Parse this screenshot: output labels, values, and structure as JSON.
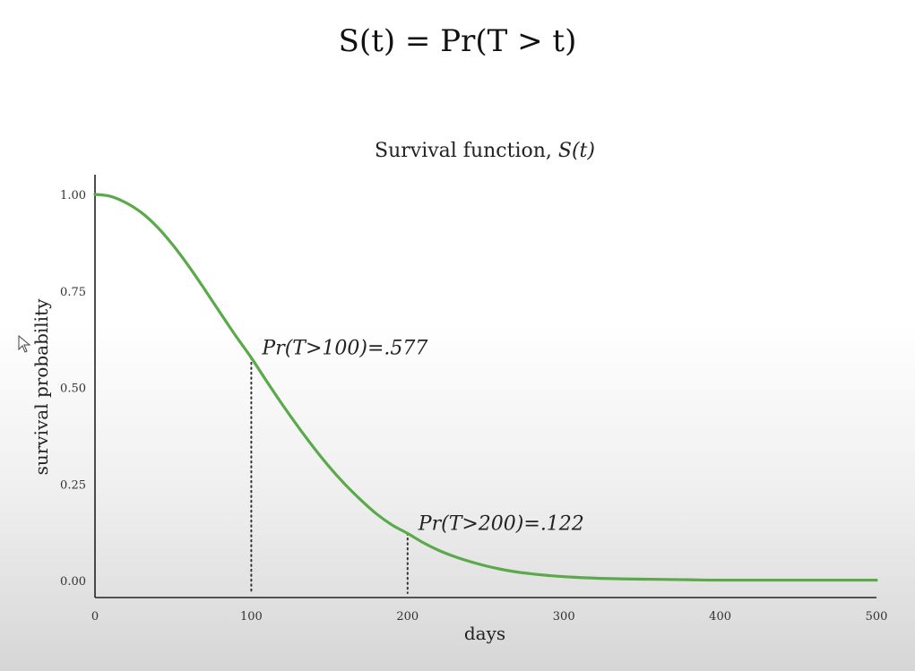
{
  "header": {
    "formula": "S(t) = Pr(T > t)"
  },
  "chart_data": {
    "type": "line",
    "title": "Survival function, S(t)",
    "title_prefix": "Survival function, ",
    "title_math": "S(t)",
    "xlabel": "days",
    "ylabel": "survival probability",
    "xlim": [
      0,
      500
    ],
    "ylim": [
      0.0,
      1.0
    ],
    "xticks": [
      0,
      100,
      200,
      300,
      400,
      500
    ],
    "xtick_labels": [
      "0",
      "100",
      "200",
      "300",
      "400",
      "500"
    ],
    "yticks": [
      0.0,
      0.25,
      0.5,
      0.75,
      1.0
    ],
    "ytick_labels": [
      "0.00",
      "0.25",
      "0.50",
      "0.75",
      "1.00"
    ],
    "grid": false,
    "series": [
      {
        "color": "#5aa94a",
        "x": [
          0,
          10,
          20,
          30,
          40,
          50,
          60,
          70,
          80,
          90,
          100,
          110,
          120,
          130,
          140,
          150,
          160,
          170,
          180,
          190,
          200,
          210,
          220,
          230,
          240,
          250,
          260,
          270,
          280,
          290,
          300,
          320,
          340,
          360,
          380,
          400,
          450,
          500
        ],
        "y": [
          1.0,
          0.995,
          0.978,
          0.952,
          0.915,
          0.868,
          0.814,
          0.755,
          0.694,
          0.634,
          0.577,
          0.515,
          0.455,
          0.398,
          0.344,
          0.294,
          0.249,
          0.209,
          0.173,
          0.144,
          0.122,
          0.098,
          0.078,
          0.062,
          0.049,
          0.038,
          0.029,
          0.022,
          0.017,
          0.013,
          0.01,
          0.006,
          0.004,
          0.003,
          0.002,
          0.001,
          0.001,
          0.001
        ]
      }
    ],
    "annotations": [
      {
        "x": 100,
        "y": 0.577,
        "text": "Pr(T>100)=.577"
      },
      {
        "x": 200,
        "y": 0.122,
        "text": "Pr(T>200)=.122"
      }
    ]
  }
}
